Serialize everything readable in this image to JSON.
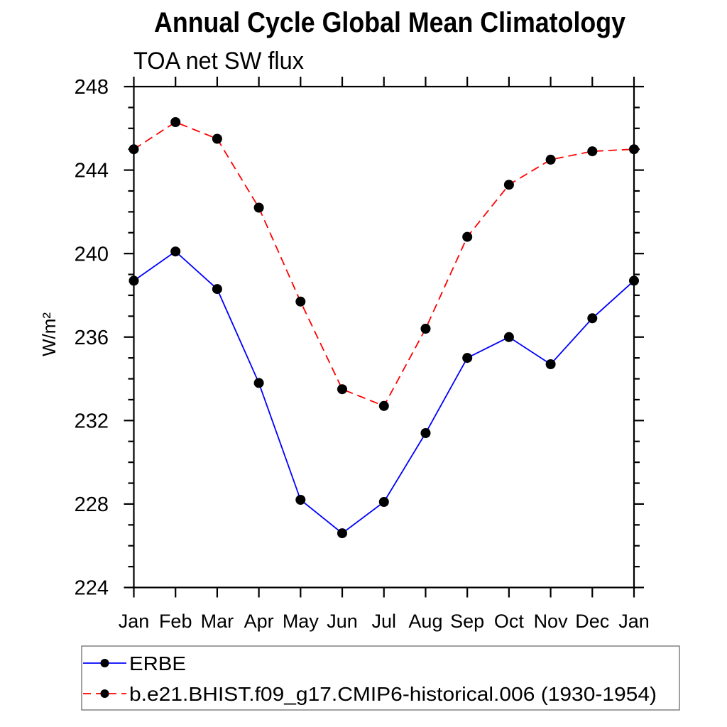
{
  "chart_data": {
    "type": "line",
    "title": "Annual Cycle Global Mean Climatology",
    "subtitle": "TOA net SW flux",
    "ylabel": "W/m²",
    "categories": [
      "Jan",
      "Feb",
      "Mar",
      "Apr",
      "May",
      "Jun",
      "Jul",
      "Aug",
      "Sep",
      "Oct",
      "Nov",
      "Dec",
      "Jan"
    ],
    "ylim": [
      224,
      248
    ],
    "ytick_major": [
      224,
      228,
      232,
      236,
      240,
      244,
      248
    ],
    "ytick_minor_step": 1,
    "grid": false,
    "legend_position": "bottom-left",
    "series": [
      {
        "name": "ERBE",
        "color": "#0000ff",
        "line_style": "solid",
        "marker": "filled-circle",
        "marker_color": "#000000",
        "values": [
          238.7,
          240.1,
          238.3,
          233.8,
          228.2,
          226.6,
          228.1,
          231.4,
          235.0,
          236.0,
          234.7,
          236.9,
          238.7
        ]
      },
      {
        "name": "b.e21.BHIST.f09_g17.CMIP6-historical.006 (1930-1954)",
        "color": "#ff0000",
        "line_style": "dashed",
        "marker": "filled-circle",
        "marker_color": "#000000",
        "values": [
          245.0,
          246.3,
          245.5,
          242.2,
          237.7,
          233.5,
          232.7,
          236.4,
          240.8,
          243.3,
          244.5,
          244.9,
          245.0
        ]
      }
    ]
  }
}
